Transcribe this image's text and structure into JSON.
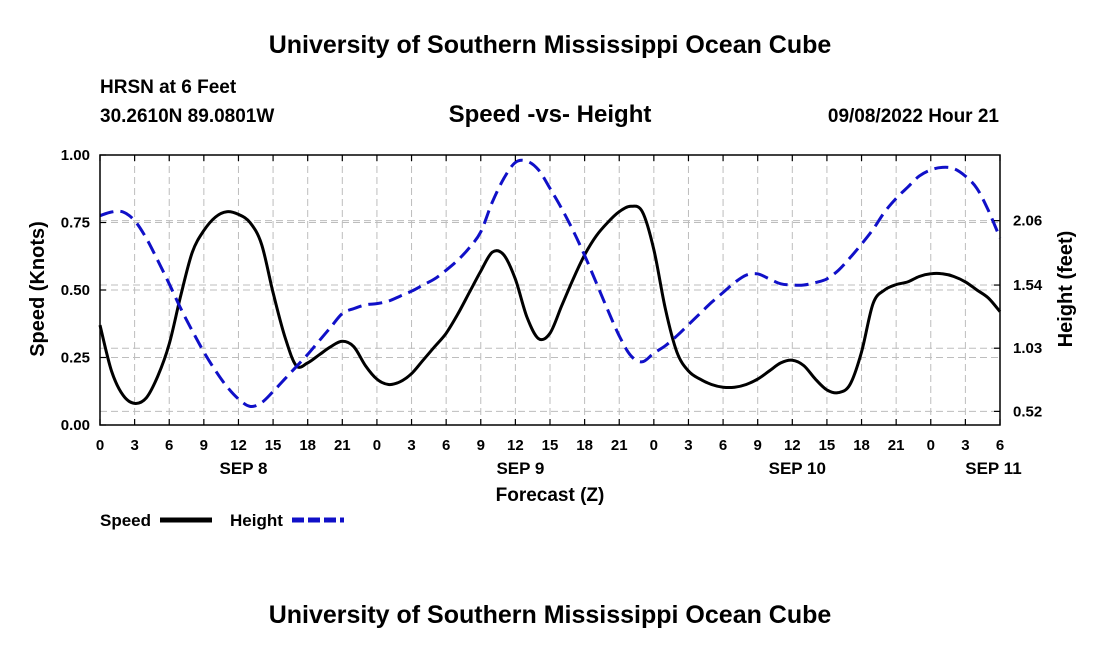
{
  "page": {
    "title": "University of Southern Mississippi Ocean Cube",
    "station": "HRSN at 6 Feet",
    "coords": "30.2610N  89.0801W",
    "datetime": "09/08/2022 Hour 21",
    "footer_title": "University of Southern Mississippi Ocean Cube"
  },
  "chart_data": {
    "type": "line",
    "title": "Speed -vs- Height",
    "xlabel": "Forecast (Z)",
    "ylabel": "Speed (Knots)",
    "y2label": "Height (feet)",
    "x_unit": "hours since SEP 8 00Z",
    "xlim": [
      0,
      78
    ],
    "ylim": [
      0,
      1
    ],
    "y2lim": [
      0.41,
      2.59
    ],
    "yticks": [
      0,
      0.25,
      0.5,
      0.75,
      1
    ],
    "yticklabels": [
      "0.00",
      "0.25",
      "0.50",
      "0.75",
      "1.00"
    ],
    "y2ticks": [
      0.52,
      1.03,
      1.54,
      2.06
    ],
    "y2ticklabels": [
      "0.52",
      "1.03",
      "1.54",
      "2.06"
    ],
    "xticks": [
      0,
      3,
      6,
      9,
      12,
      15,
      18,
      21,
      24,
      27,
      30,
      33,
      36,
      39,
      42,
      45,
      48,
      51,
      54,
      57,
      60,
      63,
      66,
      69,
      72,
      75,
      78
    ],
    "xticklabels": [
      "0",
      "3",
      "6",
      "9",
      "12",
      "15",
      "18",
      "21",
      "0",
      "3",
      "6",
      "9",
      "12",
      "15",
      "18",
      "21",
      "0",
      "3",
      "6",
      "9",
      "12",
      "15",
      "18",
      "21",
      "0",
      "3",
      "6"
    ],
    "day_labels": [
      {
        "x": 12,
        "label": "SEP 8"
      },
      {
        "x": 36,
        "label": "SEP 9"
      },
      {
        "x": 60,
        "label": "SEP 10"
      },
      {
        "x": 77,
        "label": "SEP 11"
      }
    ],
    "grid": true,
    "legend": {
      "position": "bottom-left"
    },
    "series": [
      {
        "name": "Speed",
        "axis": "left",
        "color": "#000000",
        "dash": "solid",
        "x": [
          0,
          1,
          2,
          3,
          4,
          5,
          6,
          7,
          8,
          9,
          10,
          11,
          12,
          13,
          14,
          15,
          16,
          17,
          18,
          19,
          20,
          21,
          22,
          23,
          24,
          25,
          26,
          27,
          28,
          29,
          30,
          31,
          32,
          33,
          34,
          35,
          36,
          37,
          38,
          39,
          40,
          41,
          42,
          43,
          44,
          45,
          46,
          47,
          48,
          49,
          50,
          51,
          52,
          53,
          54,
          55,
          56,
          57,
          58,
          59,
          60,
          61,
          62,
          63,
          64,
          65,
          66,
          67,
          68,
          69,
          70,
          71,
          72,
          73,
          74,
          75,
          76,
          77,
          78
        ],
        "y": [
          0.37,
          0.2,
          0.11,
          0.08,
          0.1,
          0.18,
          0.3,
          0.48,
          0.64,
          0.72,
          0.77,
          0.79,
          0.78,
          0.75,
          0.67,
          0.49,
          0.33,
          0.22,
          0.23,
          0.26,
          0.29,
          0.31,
          0.29,
          0.22,
          0.17,
          0.15,
          0.16,
          0.19,
          0.24,
          0.29,
          0.34,
          0.41,
          0.49,
          0.57,
          0.64,
          0.63,
          0.54,
          0.4,
          0.32,
          0.34,
          0.44,
          0.54,
          0.63,
          0.7,
          0.75,
          0.79,
          0.81,
          0.79,
          0.65,
          0.43,
          0.27,
          0.2,
          0.17,
          0.15,
          0.14,
          0.14,
          0.15,
          0.17,
          0.2,
          0.23,
          0.24,
          0.22,
          0.17,
          0.13,
          0.12,
          0.15,
          0.27,
          0.45,
          0.5,
          0.52,
          0.53,
          0.55,
          0.56,
          0.56,
          0.55,
          0.53,
          0.5,
          0.47,
          0.42
        ]
      },
      {
        "name": "Height",
        "axis": "right",
        "color": "#1010c8",
        "dash": "dashed",
        "x": [
          0,
          1,
          2,
          3,
          4,
          5,
          6,
          7,
          8,
          9,
          10,
          11,
          12,
          13,
          14,
          15,
          16,
          17,
          18,
          19,
          20,
          21,
          22,
          23,
          24,
          25,
          26,
          27,
          28,
          29,
          30,
          31,
          32,
          33,
          34,
          35,
          36,
          37,
          38,
          39,
          40,
          41,
          42,
          43,
          44,
          45,
          46,
          47,
          48,
          49,
          50,
          51,
          52,
          53,
          54,
          55,
          56,
          57,
          58,
          59,
          60,
          61,
          62,
          63,
          64,
          65,
          66,
          67,
          68,
          69,
          70,
          71,
          72,
          73,
          74,
          75,
          76,
          77,
          78
        ],
        "y": [
          2.1,
          2.13,
          2.13,
          2.06,
          1.92,
          1.74,
          1.55,
          1.35,
          1.17,
          1.0,
          0.85,
          0.72,
          0.62,
          0.56,
          0.59,
          0.68,
          0.78,
          0.88,
          0.98,
          1.09,
          1.2,
          1.31,
          1.35,
          1.38,
          1.39,
          1.41,
          1.45,
          1.49,
          1.54,
          1.59,
          1.66,
          1.74,
          1.84,
          1.97,
          2.21,
          2.4,
          2.53,
          2.54,
          2.47,
          2.32,
          2.16,
          1.98,
          1.78,
          1.56,
          1.34,
          1.13,
          0.97,
          0.92,
          0.99,
          1.05,
          1.13,
          1.22,
          1.31,
          1.4,
          1.48,
          1.56,
          1.62,
          1.63,
          1.59,
          1.55,
          1.54,
          1.54,
          1.56,
          1.59,
          1.66,
          1.76,
          1.87,
          1.99,
          2.13,
          2.24,
          2.33,
          2.42,
          2.47,
          2.49,
          2.48,
          2.42,
          2.32,
          2.14,
          1.92
        ]
      }
    ]
  }
}
